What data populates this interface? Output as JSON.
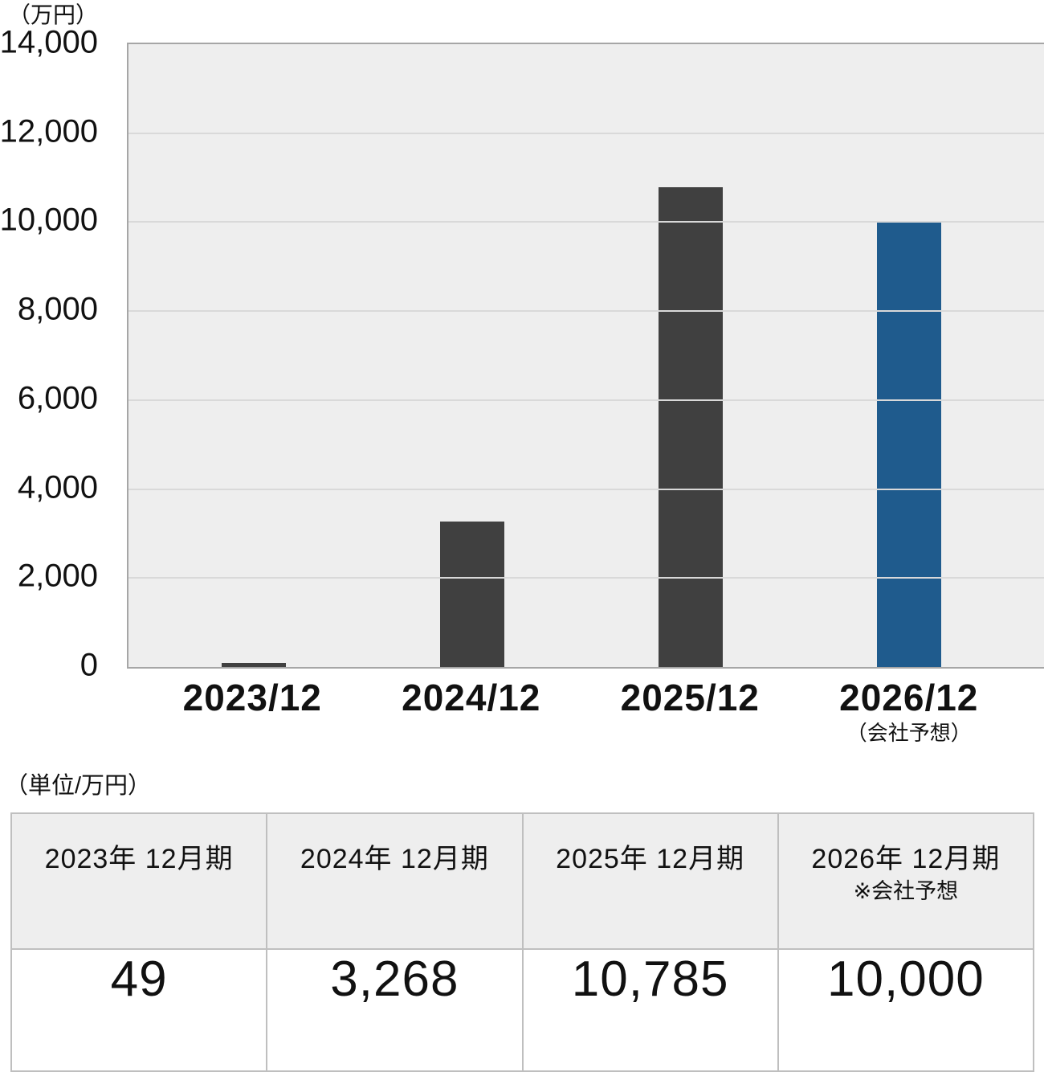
{
  "chart": {
    "unit_label": "（万円）",
    "y_ticks": [
      "14,000",
      "12,000",
      "10,000",
      "8,000",
      "6,000",
      "4,000",
      "2,000",
      "0"
    ],
    "x_labels": [
      "2023/12",
      "2024/12",
      "2025/12",
      "2026/12"
    ],
    "x_sublabels": [
      "",
      "",
      "",
      "（会社予想）"
    ],
    "colors": {
      "bar": "#404040",
      "forecast_bar": "#1f5b8d",
      "plot_bg": "#eeeeee",
      "gridline": "#d9d9d9",
      "axis_border": "#a6a6a6"
    }
  },
  "chart_data": {
    "type": "bar",
    "categories": [
      "2023/12",
      "2024/12",
      "2025/12",
      "2026/12"
    ],
    "values": [
      49,
      3268,
      10785,
      10000
    ],
    "bar_colors": [
      "#404040",
      "#404040",
      "#404040",
      "#1f5b8d"
    ],
    "title": "",
    "xlabel": "",
    "ylabel": "（万円）",
    "ylim": [
      0,
      14000
    ],
    "y_tick_step": 2000,
    "grid": "horizontal",
    "legend": "none",
    "note": "2026/12 は会社予想"
  },
  "table": {
    "unit_label": "（単位/万円）",
    "columns": [
      {
        "header": "2023年 12月期",
        "subheader": "",
        "value": "49"
      },
      {
        "header": "2024年 12月期",
        "subheader": "",
        "value": "3,268"
      },
      {
        "header": "2025年 12月期",
        "subheader": "",
        "value": "10,785"
      },
      {
        "header": "2026年 12月期",
        "subheader": "※会社予想",
        "value": "10,000"
      }
    ]
  }
}
